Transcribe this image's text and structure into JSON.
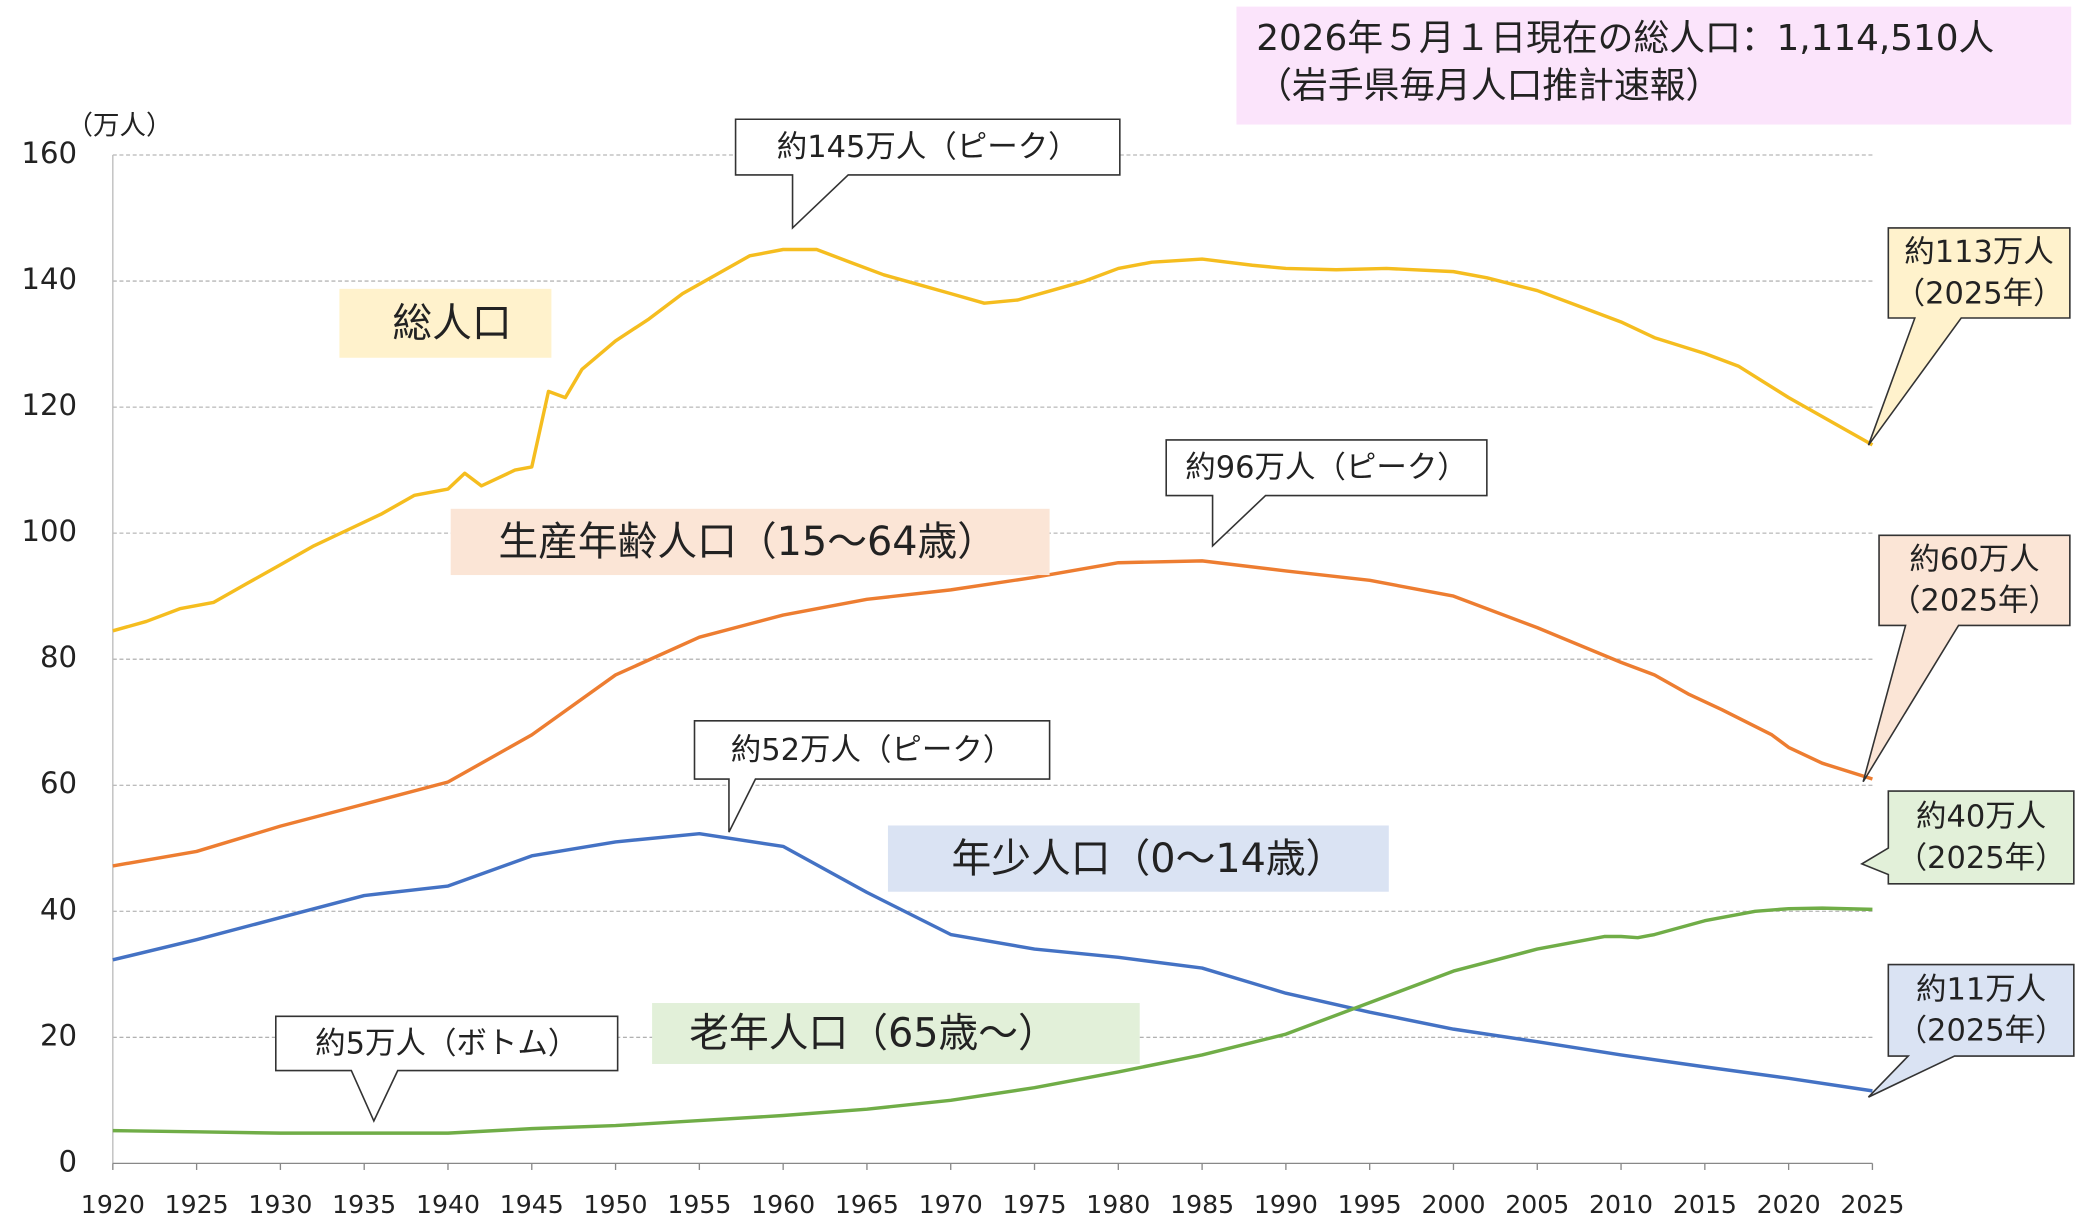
{
  "chart_data": {
    "type": "line",
    "info_box": [
      "2026年５月１日現在の総人口：1,114,510人",
      "（岩手県毎月人口推計速報）"
    ],
    "y_unit": "（万人）",
    "xlim": [
      1920,
      2025
    ],
    "xticks": [
      1920,
      1925,
      1930,
      1935,
      1940,
      1945,
      1950,
      1955,
      1960,
      1965,
      1970,
      1975,
      1980,
      1985,
      1990,
      1995,
      2000,
      2005,
      2010,
      2015,
      2020,
      2025
    ],
    "ylim": [
      0,
      160
    ],
    "yticks": [
      0,
      20,
      40,
      60,
      80,
      100,
      120,
      140,
      160
    ],
    "grid": true,
    "series": [
      {
        "name": "総人口",
        "color": "#f5bd1f",
        "label_fill": "#fff2cc",
        "x": [
          1920,
          1922,
          1924,
          1926,
          1928,
          1930,
          1932,
          1934,
          1936,
          1938,
          1940,
          1941,
          1942,
          1944,
          1945,
          1946,
          1947,
          1948,
          1950,
          1952,
          1954,
          1956,
          1958,
          1960,
          1962,
          1964,
          1966,
          1968,
          1970,
          1972,
          1974,
          1976,
          1978,
          1980,
          1982,
          1985,
          1988,
          1990,
          1993,
          1996,
          2000,
          2002,
          2005,
          2008,
          2010,
          2012,
          2015,
          2017,
          2020,
          2023,
          2025
        ],
        "values": [
          84.5,
          86,
          88,
          89,
          92,
          95,
          98,
          100.5,
          103,
          106,
          107,
          109.5,
          107.5,
          110,
          110.5,
          122.5,
          121.5,
          126,
          130.5,
          134,
          138,
          141,
          144,
          145,
          145,
          143,
          141,
          139.5,
          138,
          136.5,
          137,
          138.5,
          140,
          142,
          143,
          143.5,
          142.5,
          142,
          141.8,
          142,
          141.5,
          140.5,
          138.5,
          135.5,
          133.5,
          131,
          128.5,
          126.5,
          121.5,
          117,
          114
        ]
      },
      {
        "name": "生産年齢人口（15～64歳）",
        "color": "#ed7d31",
        "label_fill": "#fbe5d6",
        "x": [
          1920,
          1925,
          1930,
          1935,
          1940,
          1945,
          1950,
          1955,
          1960,
          1965,
          1970,
          1975,
          1980,
          1985,
          1990,
          1995,
          2000,
          2005,
          2010,
          2012,
          2014,
          2016,
          2019,
          2020,
          2022,
          2025
        ],
        "values": [
          47.2,
          49.5,
          53.5,
          57,
          60.5,
          68,
          77.5,
          83.5,
          87,
          89.5,
          91,
          93,
          95.3,
          95.6,
          94,
          92.5,
          90,
          85,
          79.5,
          77.5,
          74.5,
          72,
          68,
          66,
          63.5,
          61
        ]
      },
      {
        "name": "年少人口（0～14歳）",
        "color": "#4472c4",
        "label_fill": "#dae3f3",
        "x": [
          1920,
          1925,
          1930,
          1935,
          1940,
          1945,
          1950,
          1955,
          1960,
          1965,
          1970,
          1975,
          1980,
          1985,
          1990,
          1995,
          2000,
          2005,
          2010,
          2015,
          2020,
          2025
        ],
        "values": [
          32.3,
          35.5,
          39,
          42.5,
          44,
          48.8,
          51,
          52.3,
          50.3,
          43,
          36.3,
          34,
          32.7,
          31,
          27,
          24,
          21.3,
          19.3,
          17.2,
          15.3,
          13.5,
          11.5
        ]
      },
      {
        "name": "老年人口（65歳～）",
        "color": "#70ad47",
        "label_fill": "#e2f0d9",
        "x": [
          1920,
          1925,
          1930,
          1935,
          1940,
          1945,
          1950,
          1955,
          1960,
          1965,
          1970,
          1975,
          1980,
          1985,
          1990,
          1995,
          2000,
          2005,
          2009,
          2010,
          2011,
          2012,
          2015,
          2018,
          2020,
          2022,
          2025
        ],
        "values": [
          5.2,
          5,
          4.8,
          4.8,
          4.8,
          5.5,
          6,
          6.8,
          7.6,
          8.6,
          10,
          12,
          14.5,
          17.2,
          20.5,
          25.5,
          30.5,
          34,
          36,
          36,
          35.8,
          36.3,
          38.5,
          40,
          40.4,
          40.5,
          40.3
        ]
      }
    ],
    "annotations": [
      [
        "約145万人（ピーク）"
      ],
      [
        "約96万人（ピーク）"
      ],
      [
        "約52万人（ピーク）"
      ],
      [
        "約5万人（ボトム）"
      ],
      [
        "約113万人",
        "（2025年）"
      ],
      [
        "約60万人",
        "（2025年）"
      ],
      [
        "約40万人",
        "（2025年）"
      ],
      [
        "約11万人",
        "（2025年）"
      ]
    ]
  }
}
